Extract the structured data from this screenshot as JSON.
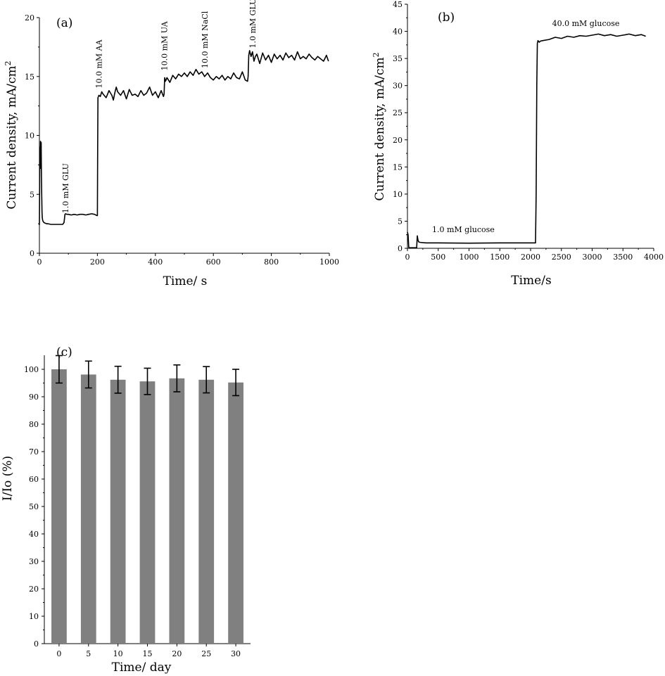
{
  "chart_data": [
    {
      "id": "a",
      "type": "line",
      "panel_label": "(a)",
      "xlabel": "Time/ s",
      "ylabel": "Current density, mA/cm",
      "ylabel_sup": "2",
      "xlim": [
        0,
        1000
      ],
      "ylim": [
        0,
        20
      ],
      "xticks": [
        0,
        200,
        400,
        600,
        800,
        1000
      ],
      "yticks": [
        0,
        5,
        10,
        15,
        20
      ],
      "grid": false,
      "legend": "none",
      "line_color": "#000000",
      "series": [
        {
          "x": [
            0,
            1,
            2,
            3,
            4,
            5,
            6,
            7,
            8,
            9,
            10,
            11,
            12,
            14,
            16,
            20,
            25,
            30,
            40,
            50,
            60,
            70,
            80,
            85,
            88,
            90,
            95,
            100,
            110,
            120,
            130,
            140,
            150,
            160,
            170,
            180,
            190,
            198,
            200,
            201,
            202,
            205,
            210,
            215,
            220,
            230,
            240,
            250,
            255,
            260,
            265,
            270,
            280,
            290,
            300,
            310,
            320,
            330,
            340,
            350,
            360,
            370,
            380,
            390,
            400,
            410,
            420,
            428,
            430,
            432,
            435,
            440,
            450,
            460,
            470,
            480,
            490,
            500,
            510,
            520,
            530,
            540,
            550,
            560,
            570,
            580,
            590,
            600,
            610,
            620,
            630,
            640,
            650,
            660,
            670,
            680,
            690,
            700,
            710,
            718,
            720,
            722,
            725,
            730,
            735,
            740,
            745,
            750,
            760,
            770,
            780,
            790,
            800,
            810,
            820,
            830,
            840,
            850,
            860,
            870,
            880,
            890,
            900,
            910,
            920,
            930,
            940,
            950,
            960,
            970,
            980,
            990,
            997
          ],
          "y": [
            2.4,
            6.7,
            9.0,
            7.2,
            9.5,
            8.0,
            9.4,
            6.5,
            4.9,
            3.5,
            3.0,
            2.85,
            2.75,
            2.65,
            2.6,
            2.55,
            2.5,
            2.5,
            2.45,
            2.45,
            2.45,
            2.45,
            2.45,
            2.6,
            3.3,
            3.35,
            3.3,
            3.3,
            3.25,
            3.3,
            3.25,
            3.3,
            3.3,
            3.25,
            3.3,
            3.35,
            3.3,
            3.2,
            3.2,
            9.0,
            13.2,
            13.4,
            13.3,
            13.7,
            13.5,
            13.2,
            13.8,
            13.4,
            13.0,
            13.6,
            14.1,
            13.7,
            13.4,
            13.8,
            13.1,
            13.9,
            13.4,
            13.5,
            13.3,
            13.8,
            13.4,
            13.6,
            14.1,
            13.4,
            13.7,
            13.2,
            13.8,
            13.3,
            13.5,
            14.9,
            14.6,
            14.9,
            14.5,
            15.1,
            14.8,
            15.2,
            15.0,
            15.3,
            15.0,
            15.4,
            15.1,
            15.6,
            15.2,
            15.4,
            15.0,
            15.3,
            14.9,
            14.7,
            15.0,
            14.8,
            15.1,
            14.7,
            15.0,
            14.8,
            15.3,
            14.9,
            14.8,
            15.4,
            14.7,
            14.6,
            15.0,
            16.8,
            17.2,
            16.7,
            17.1,
            16.3,
            16.7,
            16.9,
            16.1,
            17.0,
            16.4,
            16.8,
            16.2,
            16.9,
            16.5,
            16.8,
            16.4,
            17.0,
            16.6,
            16.8,
            16.4,
            17.1,
            16.5,
            16.7,
            16.5,
            16.9,
            16.6,
            16.4,
            16.7,
            16.5,
            16.3,
            16.8,
            16.3
          ]
        }
      ],
      "annotations": [
        {
          "text": "1.0 mM GLU",
          "x": 100,
          "y": 3.4
        },
        {
          "text": "10.0 mM AA",
          "x": 215,
          "y": 14.0
        },
        {
          "text": "10.0 mM  UA",
          "x": 440,
          "y": 15.5
        },
        {
          "text": "10.0 mM NaCl",
          "x": 580,
          "y": 15.7
        },
        {
          "text": "1.0 mM GLU",
          "x": 745,
          "y": 17.4
        }
      ]
    },
    {
      "id": "b",
      "type": "line",
      "panel_label": "(b)",
      "xlabel": "Time/s",
      "ylabel": "Current density, mA/cm",
      "ylabel_sup": "2",
      "xlim": [
        0,
        4000
      ],
      "ylim": [
        0,
        45
      ],
      "xticks": [
        0,
        500,
        1000,
        1500,
        2000,
        2500,
        3000,
        3500,
        4000
      ],
      "yticks": [
        0,
        5,
        10,
        15,
        20,
        25,
        30,
        35,
        40,
        45
      ],
      "grid": false,
      "legend": "none",
      "line_color": "#000000",
      "series": [
        {
          "x": [
            0,
            10,
            20,
            25,
            30,
            60,
            120,
            150,
            160,
            170,
            180,
            200,
            300,
            500,
            1000,
            1500,
            2000,
            2080,
            2090,
            2100,
            2110,
            2120,
            2140,
            2160,
            2200,
            2300,
            2400,
            2500,
            2600,
            2700,
            2800,
            2900,
            3000,
            3100,
            3200,
            3300,
            3400,
            3500,
            3600,
            3700,
            3800,
            3870
          ],
          "y": [
            3.0,
            2.5,
            0.3,
            0.1,
            0.1,
            0.1,
            0.1,
            0.1,
            2.3,
            1.6,
            1.2,
            1.1,
            1.0,
            1.0,
            0.95,
            1.0,
            1.0,
            1.0,
            10.0,
            30.0,
            37.8,
            38.3,
            38.0,
            38.2,
            38.3,
            38.5,
            38.9,
            38.7,
            39.1,
            38.9,
            39.2,
            39.1,
            39.3,
            39.5,
            39.2,
            39.4,
            39.1,
            39.3,
            39.5,
            39.2,
            39.4,
            39.1
          ]
        }
      ],
      "annotations": [
        {
          "text": "1.0 mM glucose",
          "x": 400,
          "y": 3.0
        },
        {
          "text": "40.0 mM glucose",
          "x": 2350,
          "y": 41.0
        }
      ]
    },
    {
      "id": "c",
      "type": "bar",
      "panel_label": "(c)",
      "xlabel": "Time/ day",
      "ylabel": "I/Io (%)",
      "categories": [
        "0",
        "5",
        "10",
        "15",
        "20",
        "25",
        "30"
      ],
      "values": [
        100,
        98.1,
        96.2,
        95.6,
        96.7,
        96.2,
        95.2
      ],
      "errors": [
        5.0,
        4.9,
        4.9,
        4.8,
        4.9,
        4.8,
        4.8
      ],
      "ylim": [
        0,
        100
      ],
      "yticks": [
        0,
        10,
        20,
        30,
        40,
        50,
        60,
        70,
        80,
        90,
        100
      ],
      "grid": false,
      "legend": "none",
      "bar_color": "#808080"
    }
  ]
}
